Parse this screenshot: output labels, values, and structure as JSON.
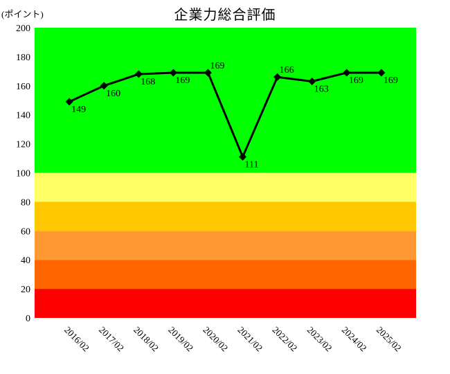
{
  "chart_data": {
    "type": "line",
    "title": "企業力総合評価",
    "ylabel": "(ポイント)",
    "x": [
      "2016/02",
      "2017/02",
      "2018/02",
      "2019/02",
      "2020/02",
      "2021/02",
      "2022/02",
      "2023/02",
      "2024/02",
      "2025/02"
    ],
    "values": [
      149,
      160,
      168,
      169,
      169,
      111,
      166,
      163,
      169,
      169
    ],
    "label_positions": [
      "below",
      "below",
      "below",
      "below",
      "above",
      "below",
      "above",
      "below",
      "below",
      "below"
    ],
    "ylim": [
      0,
      200
    ],
    "yticks": [
      0,
      20,
      40,
      60,
      80,
      100,
      120,
      140,
      160,
      180,
      200
    ],
    "grid": false,
    "legend": "none",
    "line_color": "#000000",
    "marker": "diamond",
    "marker_color": "#000000",
    "bands": [
      {
        "from": 100,
        "to": 200,
        "color": "#00FF00"
      },
      {
        "from": 80,
        "to": 100,
        "color": "#FFFF66"
      },
      {
        "from": 60,
        "to": 80,
        "color": "#FFC800"
      },
      {
        "from": 40,
        "to": 60,
        "color": "#FF9933"
      },
      {
        "from": 20,
        "to": 40,
        "color": "#FF6600"
      },
      {
        "from": 0,
        "to": 20,
        "color": "#FF0000"
      }
    ]
  }
}
